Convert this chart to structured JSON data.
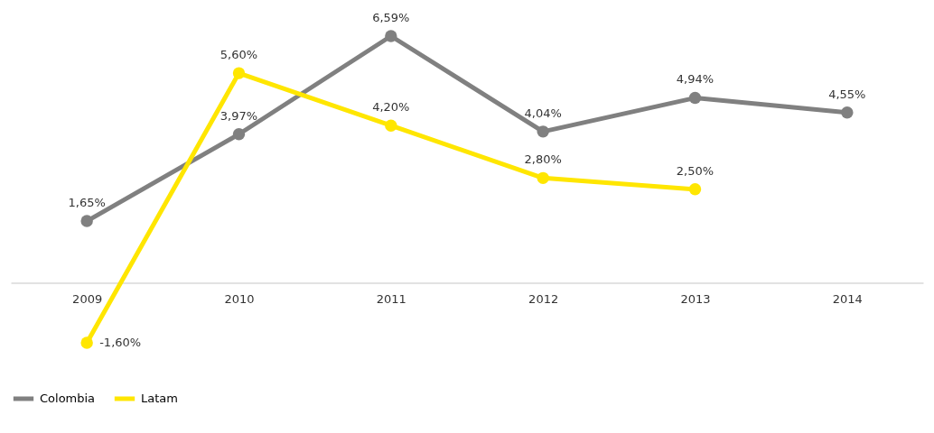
{
  "chart_data": {
    "type": "line",
    "categories": [
      "2009",
      "2010",
      "2011",
      "2012",
      "2013",
      "2014"
    ],
    "series": [
      {
        "name": "Colombia",
        "color": "#808080",
        "values": [
          1.65,
          3.97,
          6.59,
          4.04,
          4.94,
          4.55
        ],
        "value_labels": [
          "1,65%",
          "3,97%",
          "6,59%",
          "4,04%",
          "4,94%",
          "4,55%"
        ]
      },
      {
        "name": "Latam",
        "color": "#ffe600",
        "values": [
          -1.6,
          5.6,
          4.2,
          2.8,
          2.5,
          null
        ],
        "value_labels": [
          "-1,60%",
          "5,60%",
          "4,20%",
          "2,80%",
          "2,50%",
          null
        ]
      }
    ],
    "tick_labels": "x",
    "legend": "bottom",
    "marker": "circle",
    "line_style": "solid"
  }
}
